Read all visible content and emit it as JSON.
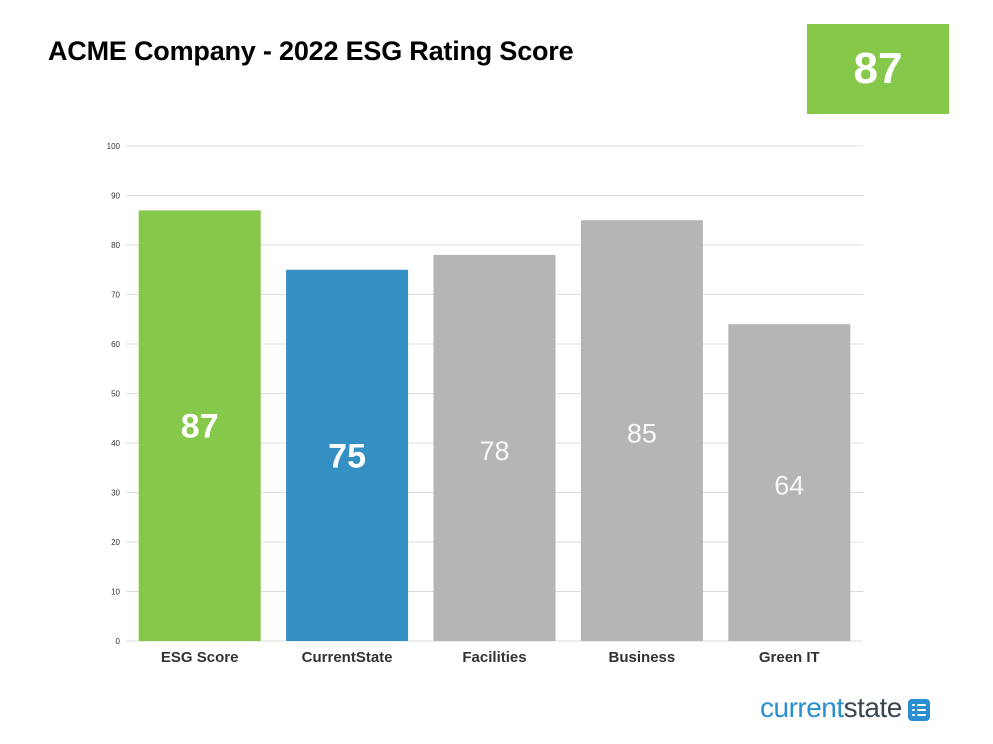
{
  "header": {
    "title": "ACME Company - 2022 ESG Rating Score",
    "score_badge": "87"
  },
  "colors": {
    "esg_green": "#86c94a",
    "current_blue": "#3490c3",
    "neutral_gray": "#b5b5b5",
    "brand_blue": "#2a8fd0",
    "brand_dark": "#3b4750"
  },
  "chart_data": {
    "type": "bar",
    "title": "",
    "xlabel": "",
    "ylabel": "",
    "ylim": [
      0,
      100
    ],
    "yticks": [
      0,
      10,
      20,
      30,
      40,
      50,
      60,
      70,
      80,
      90,
      100
    ],
    "grid": true,
    "categories": [
      "ESG Score",
      "CurrentState",
      "Facilities",
      "Business",
      "Green IT"
    ],
    "values": [
      87,
      75,
      78,
      85,
      64
    ],
    "bar_colors": [
      "#86c94a",
      "#3490c3",
      "#b5b5b5",
      "#b5b5b5",
      "#b5b5b5"
    ],
    "data_labels": [
      "87",
      "75",
      "78",
      "85",
      "64"
    ],
    "label_bold": [
      true,
      true,
      false,
      false,
      false
    ]
  },
  "brand": {
    "part1": "current",
    "part2": "state",
    "icon": "list-icon"
  }
}
